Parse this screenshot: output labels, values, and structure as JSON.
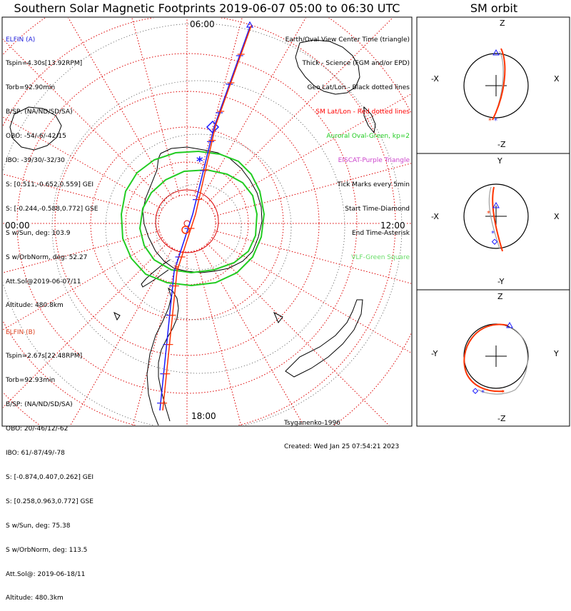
{
  "title": "Southern Solar Magnetic Footprints 2019-06-07 05:00 to 06:30 UTC",
  "sm_title": "SM orbit",
  "lt_labels": {
    "top": "06:00",
    "left": "00:00",
    "right": "12:00",
    "bottom": "18:00"
  },
  "elfin_a": {
    "name": "ELFIN (A)",
    "lines": [
      "Tspin=4.30s[13.92RPM]",
      "Torb=92.90min",
      "B/SP: (NA/ND/SD/SA)",
      "OBO: -54/-6/-42/15",
      "IBO: -39/30/-32/30",
      "S: [0.511,-0.652,0.559] GEI",
      "S: [-0.244,-0.588,0.772] GSE",
      "S w/Sun, deg: 103.9",
      "S w/OrbNorm, deg: 52.27",
      "Att.Sol@2019-06-07/11",
      "Altitude: 480.8km"
    ]
  },
  "elfin_b": {
    "name": "ELFIN (B)",
    "lines": [
      "Tspin=2.67s[22.48RPM]",
      "Torb=92.93min",
      "B/SP: (NA/ND/SD/SA)",
      "OBO: 20/-46/12/-62",
      "IBO: 61/-87/49/-78",
      "S: [-0.874,0.407,0.262] GEI",
      "S: [0.258,0.963,0.772] GSE",
      "S w/Sun, deg: 75.38",
      "S w/OrbNorm, deg: 113.5",
      "Att.Sol@: 2019-06-18/11",
      "Altitude: 480.3km"
    ]
  },
  "legend": {
    "line1": "Earth/Oval View Center Time (triangle)",
    "line2": "Thick - Science (FGM and/or EPD)",
    "line3": "Geo Lat/Lon - Black dotted lines",
    "line4": "SM Lat/Lon - Red dotted lines",
    "line5": "Auroral Oval-Green, kp=2",
    "line6": "EISCAT-Purple Triangle",
    "line7": "Tick Marks every 5min",
    "line8": "Start Time-Diamond",
    "line9": "End Time-Asterisk",
    "line10": "VLF-Green Square"
  },
  "credits": {
    "model": "Tsyganenko-1996",
    "created": "Created: Wed Jan 25 07:54:21 2023"
  },
  "sm_panels": {
    "xz": {
      "top": "Z",
      "bottom": "-Z",
      "left": "-X",
      "right": "X"
    },
    "xy": {
      "top": "Y",
      "bottom": "-Y",
      "left": "-X",
      "right": "X"
    },
    "yz": {
      "top": "Z",
      "bottom": "-Z",
      "left": "-Y",
      "right": "Y"
    }
  },
  "colors": {
    "track_a": "#1a1aff",
    "track_b": "#ff3300",
    "sm_grid": "#dd0000",
    "oval": "#22cc22",
    "orbit_b_gray": "#a0a0a0"
  },
  "chart_data": {
    "type": "map",
    "projection": "south polar, solar magnetic",
    "sm_latitude_circles_deg": [
      -80,
      -70,
      -60,
      -50,
      -40
    ],
    "tick_interval_min": 5,
    "time_range_utc": [
      "2019-06-07 05:00",
      "2019-06-07 06:30"
    ],
    "kp": 2
  }
}
